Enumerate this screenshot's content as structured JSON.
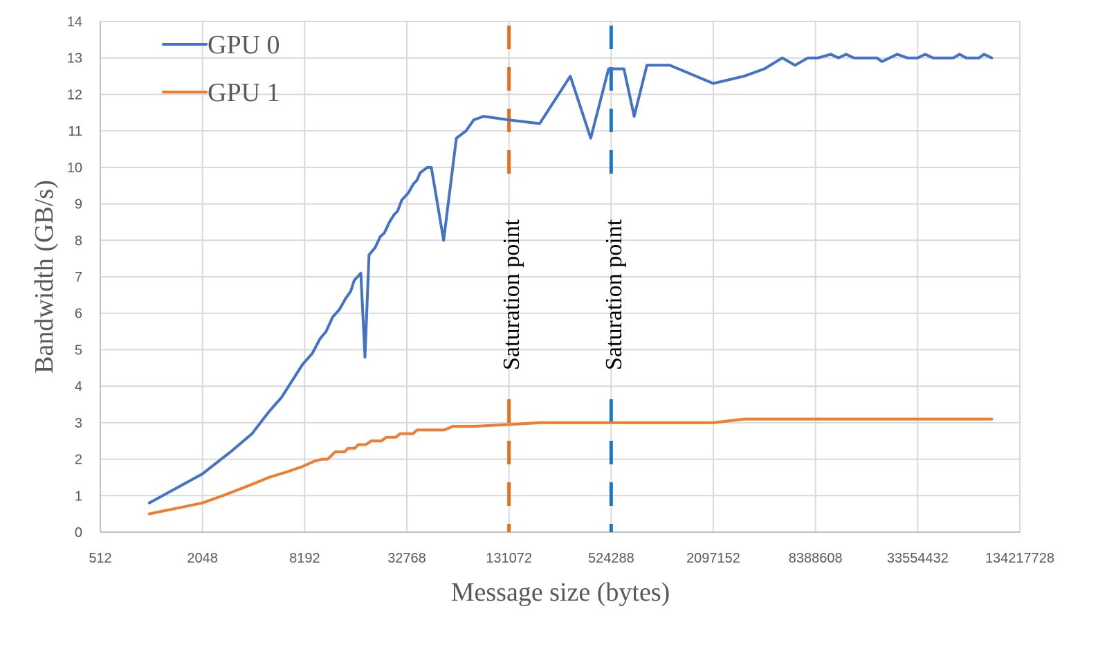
{
  "chart_data": {
    "type": "line",
    "title": "",
    "xlabel": "Message size (bytes)",
    "ylabel": "Bandwidth (GB/s)",
    "x_scale": "log2",
    "x_ticks": [
      "512",
      "2048",
      "8192",
      "32768",
      "131072",
      "524288",
      "2097152",
      "8388608",
      "33554432",
      "134217728"
    ],
    "y_ticks": [
      "0",
      "1",
      "2",
      "3",
      "4",
      "5",
      "6",
      "7",
      "8",
      "9",
      "10",
      "11",
      "12",
      "13",
      "14"
    ],
    "ylim": [
      0,
      14
    ],
    "xlim_log2": [
      9,
      27
    ],
    "grid": true,
    "legend_position": "top-left-inside",
    "series": [
      {
        "name": "GPU 0",
        "color": "#4472C4",
        "points_log2x": [
          [
            9.96,
            0.8
          ],
          [
            11.0,
            1.6
          ],
          [
            11.55,
            2.2
          ],
          [
            11.97,
            2.7
          ],
          [
            12.3,
            3.3
          ],
          [
            12.55,
            3.7
          ],
          [
            12.96,
            4.6
          ],
          [
            13.15,
            4.9
          ],
          [
            13.3,
            5.3
          ],
          [
            13.42,
            5.5
          ],
          [
            13.55,
            5.9
          ],
          [
            13.68,
            6.1
          ],
          [
            13.8,
            6.4
          ],
          [
            13.9,
            6.6
          ],
          [
            13.97,
            6.9
          ],
          [
            14.1,
            7.1
          ],
          [
            14.18,
            4.8
          ],
          [
            14.26,
            7.6
          ],
          [
            14.38,
            7.8
          ],
          [
            14.48,
            8.1
          ],
          [
            14.56,
            8.2
          ],
          [
            14.66,
            8.5
          ],
          [
            14.75,
            8.7
          ],
          [
            14.82,
            8.8
          ],
          [
            14.9,
            9.1
          ],
          [
            15.03,
            9.3
          ],
          [
            15.13,
            9.55
          ],
          [
            15.2,
            9.65
          ],
          [
            15.26,
            9.85
          ],
          [
            15.4,
            10.0
          ],
          [
            15.48,
            10.0
          ],
          [
            15.72,
            8.0
          ],
          [
            15.97,
            10.8
          ],
          [
            16.16,
            11.0
          ],
          [
            16.31,
            11.3
          ],
          [
            16.5,
            11.4
          ],
          [
            17.0,
            11.3
          ],
          [
            17.6,
            11.2
          ],
          [
            18.2,
            12.5
          ],
          [
            18.6,
            10.8
          ],
          [
            18.95,
            12.7
          ],
          [
            19.25,
            12.7
          ],
          [
            19.45,
            11.4
          ],
          [
            19.7,
            12.8
          ],
          [
            20.15,
            12.8
          ],
          [
            21.0,
            12.3
          ],
          [
            21.6,
            12.5
          ],
          [
            22.0,
            12.7
          ],
          [
            22.35,
            13.0
          ],
          [
            22.6,
            12.8
          ],
          [
            22.85,
            13.0
          ],
          [
            23.05,
            13.0
          ],
          [
            23.3,
            13.1
          ],
          [
            23.45,
            13.0
          ],
          [
            23.6,
            13.1
          ],
          [
            23.75,
            13.0
          ],
          [
            24.0,
            13.0
          ],
          [
            24.2,
            13.0
          ],
          [
            24.3,
            12.9
          ],
          [
            24.6,
            13.1
          ],
          [
            24.8,
            13.0
          ],
          [
            25.0,
            13.0
          ],
          [
            25.15,
            13.1
          ],
          [
            25.3,
            13.0
          ],
          [
            25.5,
            13.0
          ],
          [
            25.7,
            13.0
          ],
          [
            25.82,
            13.1
          ],
          [
            25.95,
            13.0
          ],
          [
            26.2,
            13.0
          ],
          [
            26.3,
            13.1
          ],
          [
            26.45,
            13.0
          ]
        ]
      },
      {
        "name": "GPU 1",
        "color": "#ED7D31",
        "points_log2x": [
          [
            9.96,
            0.5
          ],
          [
            11.0,
            0.8
          ],
          [
            11.4,
            1.0
          ],
          [
            11.95,
            1.3
          ],
          [
            12.3,
            1.5
          ],
          [
            12.65,
            1.65
          ],
          [
            12.96,
            1.8
          ],
          [
            13.2,
            1.95
          ],
          [
            13.35,
            2.0
          ],
          [
            13.45,
            2.0
          ],
          [
            13.6,
            2.2
          ],
          [
            13.78,
            2.2
          ],
          [
            13.85,
            2.3
          ],
          [
            13.98,
            2.3
          ],
          [
            14.05,
            2.4
          ],
          [
            14.2,
            2.4
          ],
          [
            14.3,
            2.5
          ],
          [
            14.5,
            2.5
          ],
          [
            14.6,
            2.6
          ],
          [
            14.78,
            2.6
          ],
          [
            14.87,
            2.7
          ],
          [
            15.12,
            2.7
          ],
          [
            15.2,
            2.8
          ],
          [
            15.73,
            2.8
          ],
          [
            15.9,
            2.9
          ],
          [
            16.3,
            2.9
          ],
          [
            17.0,
            2.95
          ],
          [
            17.6,
            3.0
          ],
          [
            19.0,
            3.0
          ],
          [
            21.0,
            3.0
          ],
          [
            21.6,
            3.1
          ],
          [
            26.45,
            3.1
          ]
        ]
      }
    ],
    "annotations": [
      {
        "text": "Saturation point",
        "x_log2": 17.0,
        "color": "#E07020",
        "style": "dashed vertical"
      },
      {
        "text": "Saturation point",
        "x_log2": 19.0,
        "color": "#1F77C4",
        "style": "dashed vertical"
      }
    ]
  },
  "legend": [
    {
      "label": "GPU 0",
      "color": "#4472C4"
    },
    {
      "label": "GPU 1",
      "color": "#ED7D31"
    }
  ],
  "axes": {
    "x_title": "Message size (bytes)",
    "y_title": "Bandwidth (GB/s)"
  },
  "annotations": {
    "sat1": "Saturation point",
    "sat2": "Saturation point"
  }
}
